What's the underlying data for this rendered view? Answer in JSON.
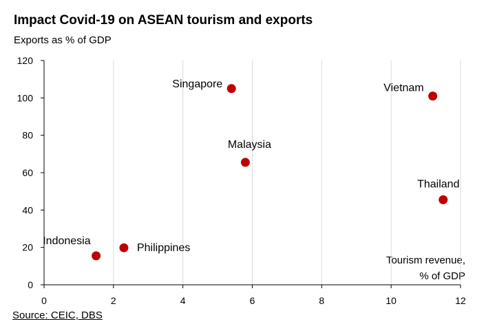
{
  "header": {
    "title": "Impact Covid-19 on ASEAN tourism and exports",
    "subtitle": "Exports as % of GDP"
  },
  "footer": {
    "source": "Source: CEIC, DBS"
  },
  "chart_data": {
    "type": "scatter",
    "title": "Impact Covid-19 on ASEAN tourism and exports",
    "ylabel": "Exports as % of GDP",
    "xlabel_lines": [
      "Tourism revenue,",
      "% of GDP"
    ],
    "xlim": [
      0,
      12
    ],
    "ylim": [
      0,
      120
    ],
    "xticks": [
      0,
      2,
      4,
      6,
      8,
      10,
      12
    ],
    "yticks": [
      0,
      20,
      40,
      60,
      80,
      100,
      120
    ],
    "grid": "vertical",
    "marker_color": "#c00000",
    "points": [
      {
        "label": "Indonesia",
        "x": 1.5,
        "y": 15.5
      },
      {
        "label": "Philippines",
        "x": 2.3,
        "y": 19.8
      },
      {
        "label": "Singapore",
        "x": 5.4,
        "y": 105
      },
      {
        "label": "Malaysia",
        "x": 5.8,
        "y": 65.5
      },
      {
        "label": "Vietnam",
        "x": 11.2,
        "y": 101
      },
      {
        "label": "Thailand",
        "x": 11.5,
        "y": 45.5
      }
    ]
  }
}
